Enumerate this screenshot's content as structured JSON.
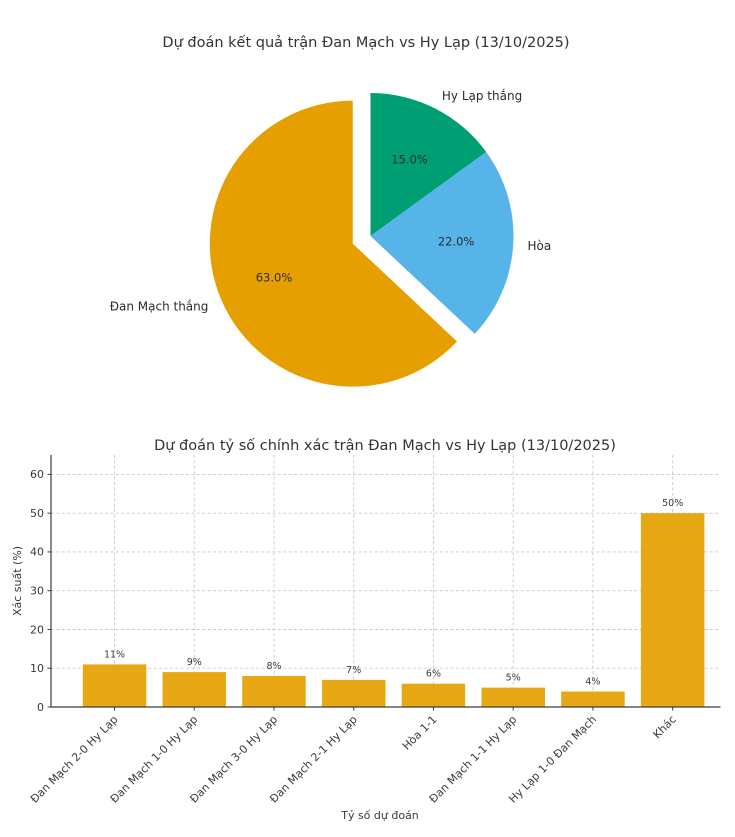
{
  "style": {
    "background": "#ffffff",
    "text_color": "#3a3a3a",
    "axis_color": "#3c3c3c",
    "grid_color": "#c9c9c9",
    "orange": "#E69F00",
    "green": "#009E73",
    "blue": "#56B4E9"
  },
  "chart_data": [
    {
      "type": "pie",
      "title": "Dự đoán kết quả trận Đan Mạch vs Hy Lạp (13/10/2025)",
      "labels": [
        "Hy Lạp thắng",
        "Hòa",
        "Đan Mạch thắng"
      ],
      "values": [
        15.0,
        22.0,
        63.0
      ],
      "pct_labels": [
        "15.0%",
        "22.0%",
        "63.0%"
      ],
      "colors": [
        "#009E73",
        "#56B4E9",
        "#E69F00"
      ],
      "explode": [
        0,
        0,
        0.135
      ],
      "start_angle": 90,
      "counterclock": false,
      "legend_position": "none"
    },
    {
      "type": "bar",
      "title": "Dự đoán tỷ số chính xác trận Đan Mạch vs Hy Lạp (13/10/2025)",
      "xlabel": "Tỷ số dự đoán",
      "ylabel": "Xác suất (%)",
      "categories": [
        "Đan Mạch 2-0 Hy Lạp",
        "Đan Mạch 1-0 Hy Lạp",
        "Đan Mạch 3-0 Hy Lạp",
        "Đan Mạch 2-1 Hy Lạp",
        "Hòa 1-1",
        "Đan Mạch 1-1 Hy Lạp",
        "Hy Lạp 1-0 Đan Mạch",
        "Khác"
      ],
      "values": [
        11,
        9,
        8,
        7,
        6,
        5,
        4,
        50
      ],
      "value_labels": [
        "11%",
        "9%",
        "8%",
        "7%",
        "6%",
        "5%",
        "4%",
        "50%"
      ],
      "bar_color": "#E69F00",
      "yticks": [
        0,
        10,
        20,
        30,
        40,
        50,
        60
      ],
      "ylim": [
        0,
        65
      ],
      "grid": "dashed-both",
      "xtick_rotation": 45
    }
  ]
}
